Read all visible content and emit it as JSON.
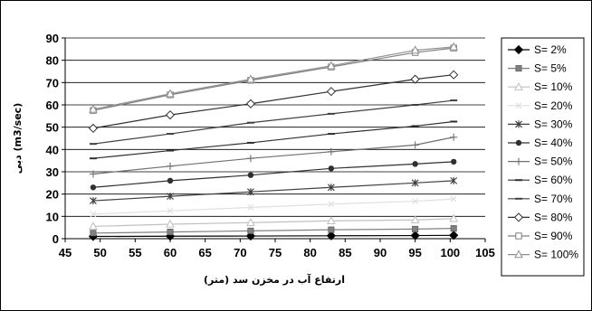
{
  "chart_data": {
    "type": "line",
    "title": "",
    "xlabel": "ارتفاع آب در مخزن سد (متر)",
    "ylabel": "دبی (m3/sec)",
    "xlim": [
      45,
      105
    ],
    "ylim": [
      0,
      90
    ],
    "xticks": [
      45,
      50,
      55,
      60,
      65,
      70,
      75,
      80,
      85,
      90,
      95,
      100,
      105
    ],
    "yticks": [
      0,
      10,
      20,
      30,
      40,
      50,
      60,
      70,
      80,
      90
    ],
    "grid": "horizontal",
    "legend_position": "right",
    "x": [
      49,
      60,
      71.5,
      83,
      95,
      100.5
    ],
    "series": [
      {
        "name": "S= 2%",
        "marker": "diamond-filled",
        "color": "#000000",
        "values": [
          1.0,
          1.1,
          1.2,
          1.3,
          1.4,
          1.5
        ]
      },
      {
        "name": "S= 5%",
        "marker": "square-filled",
        "color": "#808080",
        "values": [
          2.5,
          3.0,
          3.5,
          4.0,
          4.3,
          4.6
        ]
      },
      {
        "name": "S= 10%",
        "marker": "triangle-open",
        "color": "#c0c0c0",
        "values": [
          5.5,
          6.5,
          7.2,
          8.0,
          8.4,
          9.0
        ]
      },
      {
        "name": "S= 20%",
        "marker": "x",
        "color": "#e0e0e0",
        "values": [
          11,
          12.5,
          14,
          15.5,
          16.8,
          17.8
        ]
      },
      {
        "name": "S= 30%",
        "marker": "asterisk",
        "color": "#404040",
        "values": [
          17,
          19,
          21,
          23,
          25,
          26
        ]
      },
      {
        "name": "S= 40%",
        "marker": "circle-filled",
        "color": "#303030",
        "values": [
          23,
          26,
          28.5,
          31.5,
          33.5,
          34.5
        ]
      },
      {
        "name": "S= 50%",
        "marker": "plus",
        "color": "#707070",
        "values": [
          29,
          32.5,
          36,
          39,
          42,
          45.5
        ]
      },
      {
        "name": "S= 60%",
        "marker": "dash",
        "color": "#303030",
        "values": [
          36,
          39.5,
          43,
          47,
          50.5,
          52.5
        ]
      },
      {
        "name": "S= 70%",
        "marker": "dash",
        "color": "#404040",
        "values": [
          42.5,
          47,
          52,
          56,
          60,
          62
        ]
      },
      {
        "name": "S= 80%",
        "marker": "diamond-open",
        "color": "#303030",
        "values": [
          49.5,
          55.5,
          60.5,
          66,
          71.5,
          73.5
        ]
      },
      {
        "name": "S= 90%",
        "marker": "square-open",
        "color": "#808080",
        "values": [
          57.5,
          64.5,
          71,
          77,
          83.5,
          85.5
        ]
      },
      {
        "name": "S= 100%",
        "marker": "triangle-open",
        "color": "#909090",
        "values": [
          58,
          65,
          71.5,
          77.5,
          84.5,
          86
        ]
      }
    ]
  }
}
